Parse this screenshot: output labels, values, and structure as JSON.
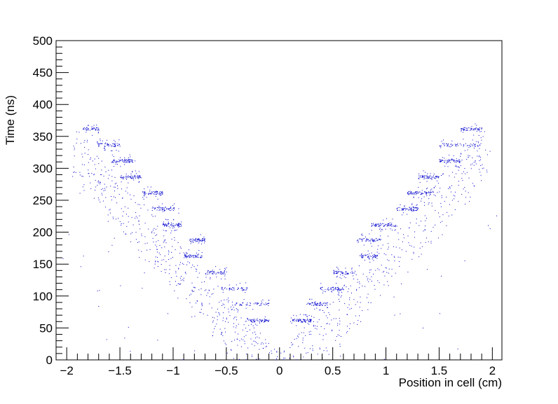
{
  "chart_data": {
    "type": "scatter",
    "title": "",
    "xlabel": "Position in cell (cm)",
    "ylabel": "Time (ns)",
    "xlim": [
      -2.1,
      2.09
    ],
    "ylim": [
      0,
      500
    ],
    "xticks": [
      -2,
      -1.5,
      -1,
      -0.5,
      0,
      0.5,
      1,
      1.5,
      2
    ],
    "xtick_labels": [
      "−2",
      "−1.5",
      "−1",
      "−0.5",
      "0",
      "0.5",
      "1",
      "1.5",
      "2"
    ],
    "yticks": [
      0,
      50,
      100,
      150,
      200,
      250,
      300,
      350,
      400,
      450,
      500
    ],
    "ytick_labels": [
      "0",
      "50",
      "100",
      "150",
      "200",
      "250",
      "300",
      "350",
      "400",
      "450",
      "500"
    ],
    "grid": false,
    "marker_color": "#0000cc",
    "clusters": [
      {
        "x": [
          -0.32,
          -0.1
        ],
        "y": 62,
        "n": 70
      },
      {
        "x": [
          -0.45,
          -0.1
        ],
        "y": 88,
        "n": 60
      },
      {
        "x": [
          -0.55,
          -0.3
        ],
        "y": 112,
        "n": 50
      },
      {
        "x": [
          -0.7,
          -0.5
        ],
        "y": 137,
        "n": 60
      },
      {
        "x": [
          -0.9,
          -0.72
        ],
        "y": 163,
        "n": 60
      },
      {
        "x": [
          -0.85,
          -0.7
        ],
        "y": 188,
        "n": 60
      },
      {
        "x": [
          -1.1,
          -0.92
        ],
        "y": 212,
        "n": 80
      },
      {
        "x": [
          -1.2,
          -0.95
        ],
        "y": 237,
        "n": 60
      },
      {
        "x": [
          -1.3,
          -1.1
        ],
        "y": 262,
        "n": 70
      },
      {
        "x": [
          -1.5,
          -1.3
        ],
        "y": 287,
        "n": 70
      },
      {
        "x": [
          -1.58,
          -1.36
        ],
        "y": 312,
        "n": 80
      },
      {
        "x": [
          -1.72,
          -1.5
        ],
        "y": 337,
        "n": 70
      },
      {
        "x": [
          -1.86,
          -1.7
        ],
        "y": 362,
        "n": 50
      },
      {
        "x": [
          0.1,
          0.3
        ],
        "y": 62,
        "n": 80
      },
      {
        "x": [
          0.25,
          0.45
        ],
        "y": 88,
        "n": 60
      },
      {
        "x": [
          0.38,
          0.6
        ],
        "y": 112,
        "n": 60
      },
      {
        "x": [
          0.5,
          0.7
        ],
        "y": 137,
        "n": 60
      },
      {
        "x": [
          0.75,
          0.92
        ],
        "y": 163,
        "n": 60
      },
      {
        "x": [
          0.72,
          0.95
        ],
        "y": 188,
        "n": 60
      },
      {
        "x": [
          0.85,
          1.1
        ],
        "y": 212,
        "n": 80
      },
      {
        "x": [
          1.1,
          1.3
        ],
        "y": 237,
        "n": 70
      },
      {
        "x": [
          1.2,
          1.45
        ],
        "y": 262,
        "n": 80
      },
      {
        "x": [
          1.3,
          1.5
        ],
        "y": 287,
        "n": 70
      },
      {
        "x": [
          1.5,
          1.7
        ],
        "y": 312,
        "n": 70
      },
      {
        "x": [
          1.5,
          1.9
        ],
        "y": 337,
        "n": 70
      },
      {
        "x": [
          1.7,
          1.9
        ],
        "y": 362,
        "n": 60
      }
    ],
    "diffuse_band": {
      "slope_ns_per_cm": 185,
      "offset_ns": -20,
      "spread_ns": 70,
      "n": 900
    },
    "background_noise": {
      "n": 90
    }
  }
}
